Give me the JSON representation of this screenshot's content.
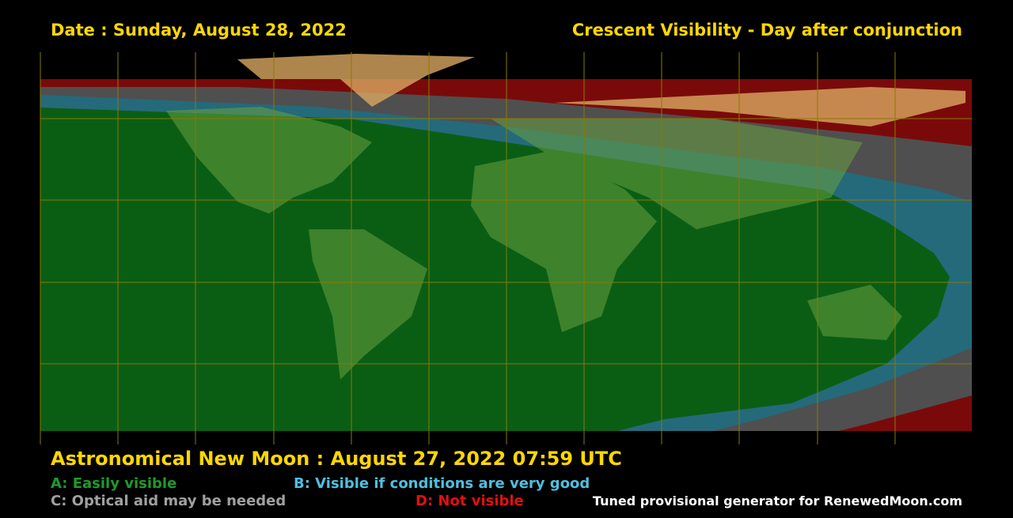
{
  "header": {
    "date": "Date : Sunday, August 28, 2022",
    "title": "Crescent Visibility - Day after conjunction"
  },
  "footer": {
    "new_moon": "Astronomical New Moon : August 27, 2022 07:59 UTC",
    "legend": [
      "A: Easily visible",
      "B: Visible if conditions are very good",
      "C: Optical aid may be needed",
      "D: Not visible"
    ],
    "credit": "Tuned provisional generator for RenewedMoon.com"
  }
}
